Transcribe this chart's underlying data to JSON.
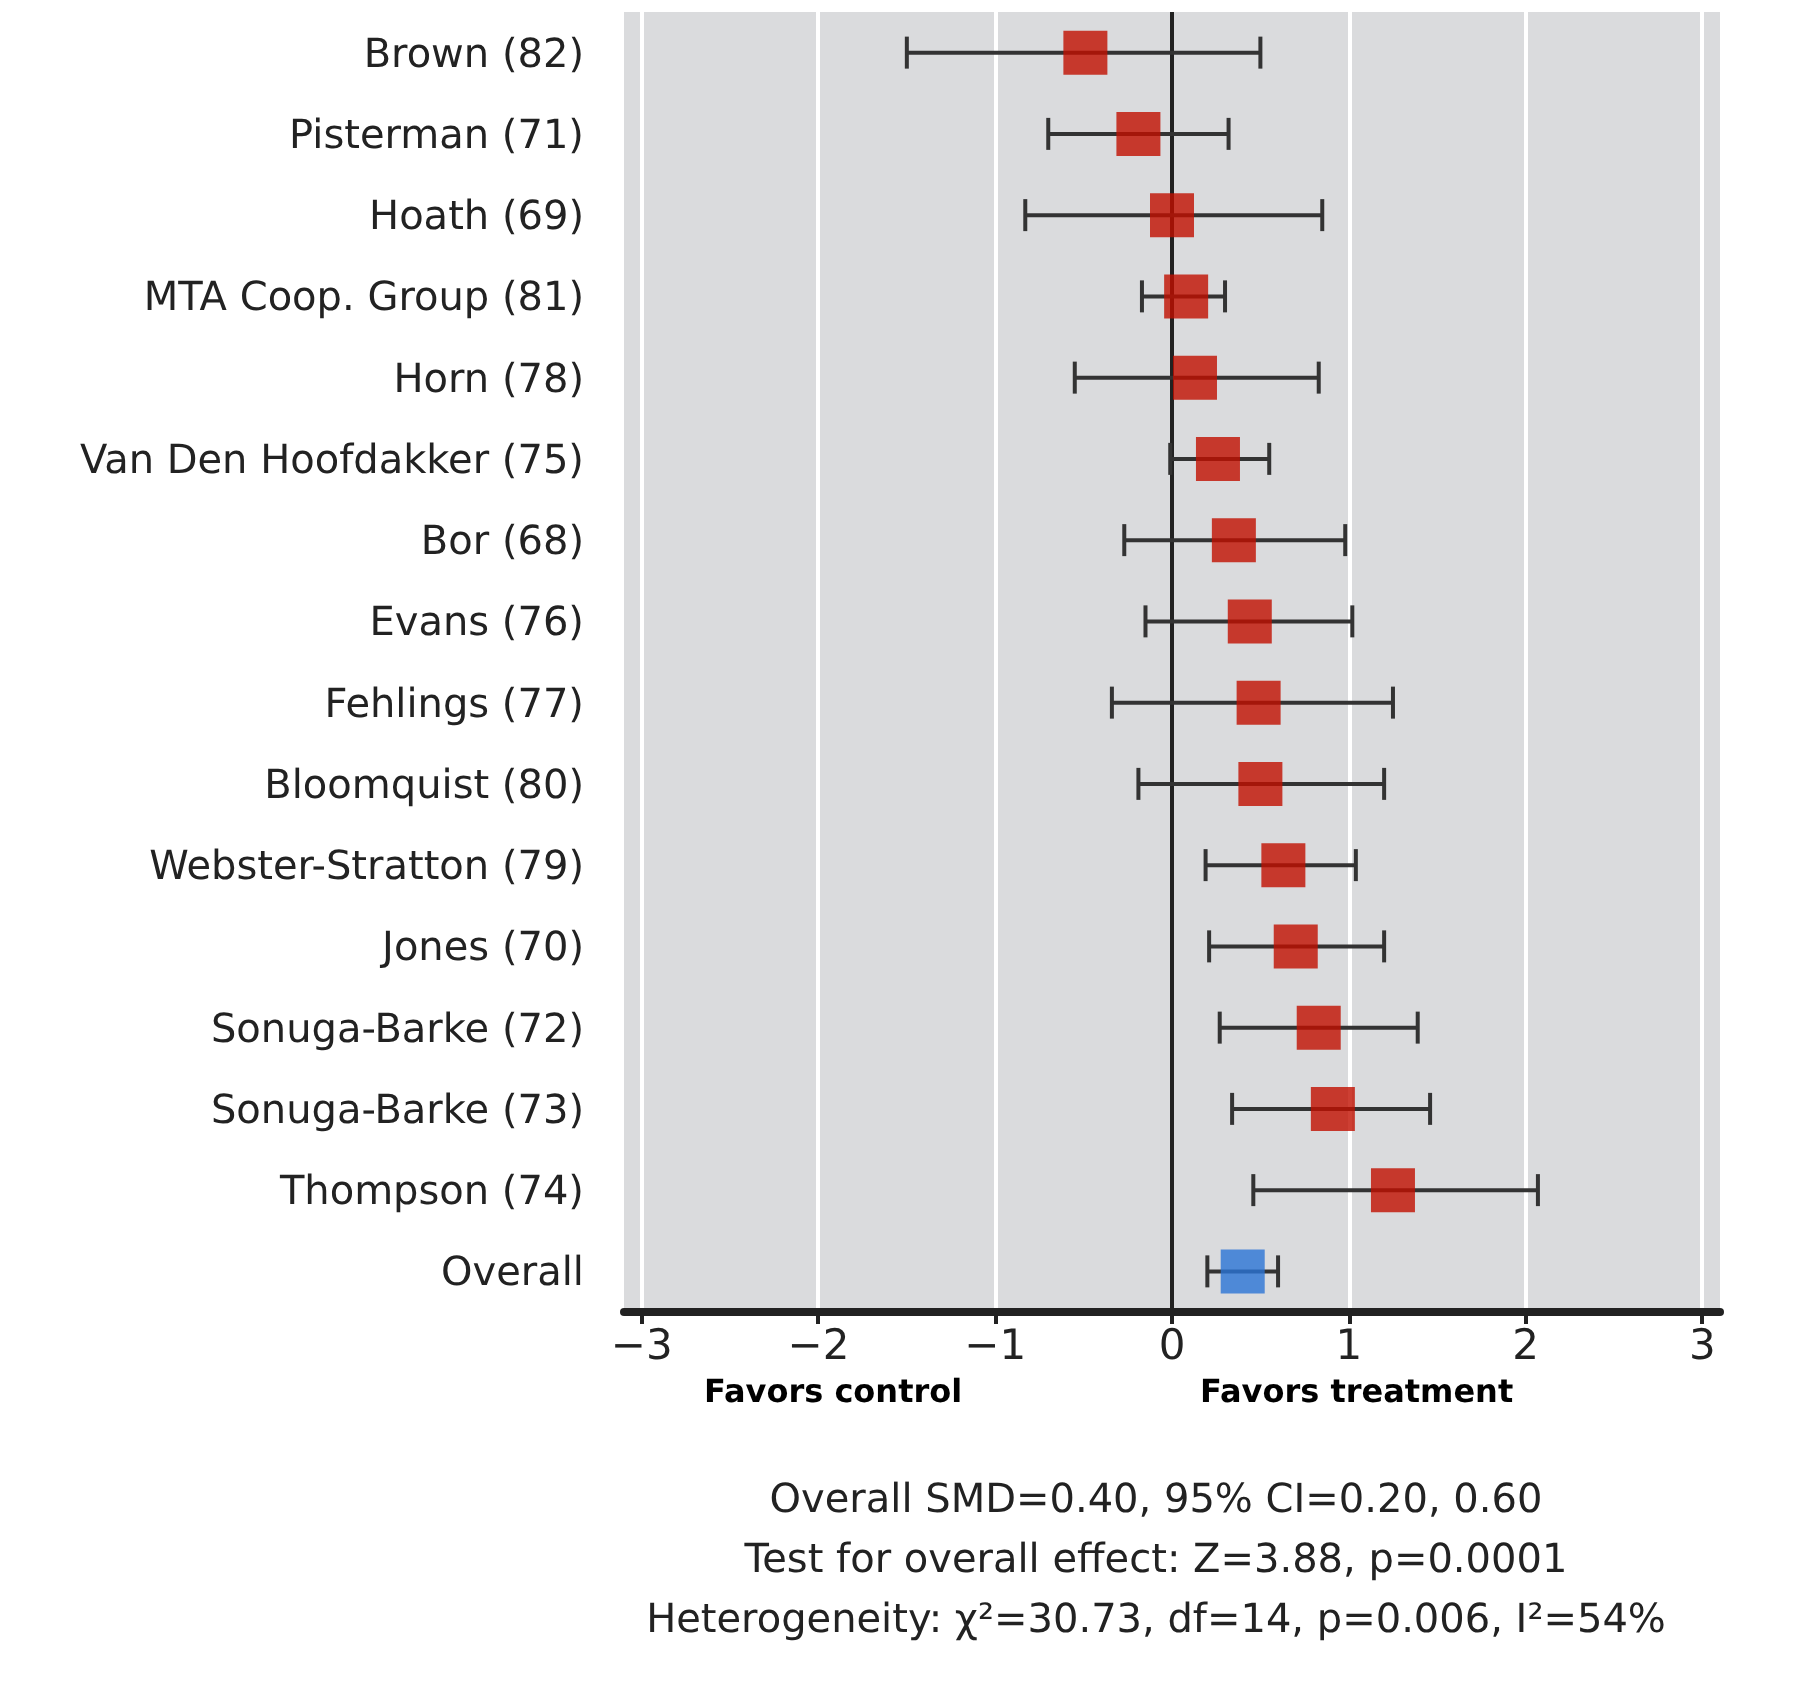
{
  "chart_data": {
    "type": "scatter",
    "orientation": "horizontal",
    "marker": "square",
    "categories": [
      "Brown (82)",
      "Pisterman (71)",
      "Hoath (69)",
      "MTA Coop. Group (81)",
      "Horn (78)",
      "Van Den Hoofdakker (75)",
      "Bor (68)",
      "Evans (76)",
      "Fehlings (77)",
      "Bloomquist (80)",
      "Webster-Stratton (79)",
      "Jones (70)",
      "Sonuga-Barke (72)",
      "Sonuga-Barke (73)",
      "Thompson (74)",
      "Overall"
    ],
    "values": [
      -0.49,
      -0.19,
      0.0,
      0.08,
      0.13,
      0.26,
      0.35,
      0.44,
      0.49,
      0.5,
      0.63,
      0.7,
      0.83,
      0.91,
      1.25,
      0.4
    ],
    "errors": [
      [
        -1.5,
        0.5
      ],
      [
        -0.7,
        0.32
      ],
      [
        -0.83,
        0.85
      ],
      [
        -0.17,
        0.3
      ],
      [
        -0.55,
        0.83
      ],
      [
        -0.01,
        0.55
      ],
      [
        -0.27,
        0.98
      ],
      [
        -0.15,
        1.02
      ],
      [
        -0.34,
        1.25
      ],
      [
        -0.19,
        1.2
      ],
      [
        0.19,
        1.04
      ],
      [
        0.21,
        1.2
      ],
      [
        0.27,
        1.39
      ],
      [
        0.34,
        1.46
      ],
      [
        0.46,
        2.07
      ],
      [
        0.2,
        0.6
      ]
    ],
    "colors": [
      "#c00f00",
      "#c00f00",
      "#c00f00",
      "#c00f00",
      "#c00f00",
      "#c00f00",
      "#c00f00",
      "#c00f00",
      "#c00f00",
      "#c00f00",
      "#c00f00",
      "#c00f00",
      "#c00f00",
      "#c00f00",
      "#c00f00",
      "#2a74d6"
    ],
    "xlim": [
      -3.1,
      3.1
    ],
    "xticks": [
      {
        "value": -3,
        "label": "−3"
      },
      {
        "value": -2,
        "label": "−2"
      },
      {
        "value": -1,
        "label": "−1"
      },
      0,
      1,
      2,
      3
    ],
    "grid": "x",
    "ref_lines": [
      {
        "axis": "x",
        "value": 0,
        "color": "#222222"
      }
    ],
    "annotations": [
      "Favors control",
      "Favors treatment",
      "Overall SMD=0.40, 95% CI=0.20, 0.60",
      "Test for overall effect: Z=3.88, p=0.0001",
      "Heterogeneity: χ²=30.73, df=14, p=0.006, I²=54%"
    ]
  }
}
